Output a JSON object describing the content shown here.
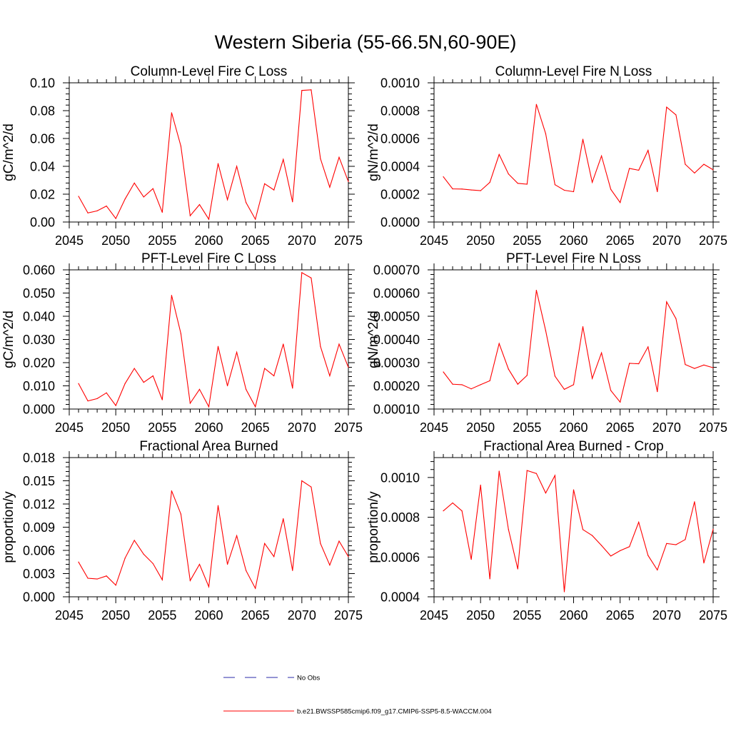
{
  "figure_title": "Western Siberia (55-66.5N,60-90E)",
  "legend": {
    "items": [
      {
        "label": "No Obs",
        "style": "dashed",
        "color": "#2a2aa8"
      },
      {
        "label": "b.e21.BWSSP585cmip6.f09_g17.CMIP6-SSP5-8.5-WACCM.004",
        "style": "solid",
        "color": "#ff0000"
      }
    ]
  },
  "colors": {
    "series": "#ff0000",
    "axis": "#000000"
  },
  "chart_data": [
    {
      "type": "line",
      "title": "Column-Level Fire C Loss",
      "xlabel": "",
      "ylabel": "gC/m^2/d",
      "xlim": [
        2045,
        2075
      ],
      "ylim": [
        0,
        0.1
      ],
      "xticks": [
        "2045",
        "2050",
        "2055",
        "2060",
        "2065",
        "2070",
        "2075"
      ],
      "yticks": [
        "0.00",
        "0.02",
        "0.04",
        "0.06",
        "0.08",
        "0.10"
      ],
      "ytick_values": [
        0,
        0.02,
        0.04,
        0.06,
        0.08,
        0.1
      ],
      "x": [
        2046,
        2047,
        2048,
        2049,
        2050,
        2051,
        2052,
        2053,
        2054,
        2055,
        2056,
        2057,
        2058,
        2059,
        2060,
        2061,
        2062,
        2063,
        2064,
        2065,
        2066,
        2067,
        2068,
        2069,
        2070,
        2071,
        2072,
        2073,
        2074,
        2075
      ],
      "series": [
        {
          "name": "b.e21.BWSSP585cmip6.f09_g17.CMIP6-SSP5-8.5-WACCM.004",
          "values": [
            0.0185,
            0.0065,
            0.008,
            0.0115,
            0.0025,
            0.0165,
            0.028,
            0.018,
            0.024,
            0.007,
            0.0785,
            0.0545,
            0.0045,
            0.0125,
            0.002,
            0.042,
            0.016,
            0.04,
            0.014,
            0.002,
            0.0275,
            0.023,
            0.045,
            0.0145,
            0.0945,
            0.095,
            0.0455,
            0.025,
            0.0465,
            0.029
          ]
        }
      ]
    },
    {
      "type": "line",
      "title": "Column-Level Fire N Loss",
      "xlabel": "",
      "ylabel": "gN/m^2/d",
      "xlim": [
        2045,
        2075
      ],
      "ylim": [
        0,
        0.001
      ],
      "xticks": [
        "2045",
        "2050",
        "2055",
        "2060",
        "2065",
        "2070",
        "2075"
      ],
      "yticks": [
        "0.0000",
        "0.0002",
        "0.0004",
        "0.0006",
        "0.0008",
        "0.0010"
      ],
      "ytick_values": [
        0,
        0.0002,
        0.0004,
        0.0006,
        0.0008,
        0.001
      ],
      "x": [
        2046,
        2047,
        2048,
        2049,
        2050,
        2051,
        2052,
        2053,
        2054,
        2055,
        2056,
        2057,
        2058,
        2059,
        2060,
        2061,
        2062,
        2063,
        2064,
        2065,
        2066,
        2067,
        2068,
        2069,
        2070,
        2071,
        2072,
        2073,
        2074,
        2075
      ],
      "series": [
        {
          "name": "b.e21.BWSSP585cmip6.f09_g17.CMIP6-SSP5-8.5-WACCM.004",
          "values": [
            0.000325,
            0.000238,
            0.000237,
            0.00023,
            0.000225,
            0.000285,
            0.000485,
            0.000345,
            0.000278,
            0.000272,
            0.000845,
            0.000635,
            0.000268,
            0.000228,
            0.000218,
            0.000595,
            0.000285,
            0.000475,
            0.000235,
            0.00014,
            0.000385,
            0.000372,
            0.000515,
            0.000218,
            0.000825,
            0.00077,
            0.000415,
            0.000352,
            0.000415,
            0.000375
          ]
        }
      ]
    },
    {
      "type": "line",
      "title": "PFT-Level Fire C Loss",
      "xlabel": "",
      "ylabel": "gC/m^2/d",
      "xlim": [
        2045,
        2075
      ],
      "ylim": [
        0,
        0.06
      ],
      "xticks": [
        "2045",
        "2050",
        "2055",
        "2060",
        "2065",
        "2070",
        "2075"
      ],
      "yticks": [
        "0.000",
        "0.010",
        "0.020",
        "0.030",
        "0.040",
        "0.050",
        "0.060"
      ],
      "ytick_values": [
        0,
        0.01,
        0.02,
        0.03,
        0.04,
        0.05,
        0.06
      ],
      "x": [
        2046,
        2047,
        2048,
        2049,
        2050,
        2051,
        2052,
        2053,
        2054,
        2055,
        2056,
        2057,
        2058,
        2059,
        2060,
        2061,
        2062,
        2063,
        2064,
        2065,
        2066,
        2067,
        2068,
        2069,
        2070,
        2071,
        2072,
        2073,
        2074,
        2075
      ],
      "series": [
        {
          "name": "b.e21.BWSSP585cmip6.f09_g17.CMIP6-SSP5-8.5-WACCM.004",
          "values": [
            0.011,
            0.0035,
            0.0045,
            0.007,
            0.0015,
            0.011,
            0.0175,
            0.0115,
            0.0143,
            0.004,
            0.049,
            0.0325,
            0.0025,
            0.0085,
            0.001,
            0.027,
            0.01,
            0.0245,
            0.0085,
            0.001,
            0.0175,
            0.0143,
            0.028,
            0.009,
            0.0588,
            0.0565,
            0.027,
            0.0143,
            0.028,
            0.018
          ]
        }
      ]
    },
    {
      "type": "line",
      "title": "PFT-Level Fire N Loss",
      "xlabel": "",
      "ylabel": "gN/m^2/d",
      "xlim": [
        2045,
        2075
      ],
      "ylim": [
        0.0001,
        0.0007
      ],
      "xticks": [
        "2045",
        "2050",
        "2055",
        "2060",
        "2065",
        "2070",
        "2075"
      ],
      "yticks": [
        "0.00010",
        "0.00020",
        "0.00030",
        "0.00040",
        "0.00050",
        "0.00060",
        "0.00070"
      ],
      "ytick_values": [
        0.0001,
        0.0002,
        0.0003,
        0.0004,
        0.0005,
        0.0006,
        0.0007
      ],
      "x": [
        2046,
        2047,
        2048,
        2049,
        2050,
        2051,
        2052,
        2053,
        2054,
        2055,
        2056,
        2057,
        2058,
        2059,
        2060,
        2061,
        2062,
        2063,
        2064,
        2065,
        2066,
        2067,
        2068,
        2069,
        2070,
        2071,
        2072,
        2073,
        2074,
        2075
      ],
      "series": [
        {
          "name": "b.e21.BWSSP585cmip6.f09_g17.CMIP6-SSP5-8.5-WACCM.004",
          "values": [
            0.00026,
            0.000207,
            0.000205,
            0.000187,
            0.000205,
            0.000222,
            0.000382,
            0.000272,
            0.000207,
            0.000245,
            0.000612,
            0.000438,
            0.000242,
            0.000185,
            0.000205,
            0.000455,
            0.000232,
            0.000342,
            0.00018,
            0.00013,
            0.000297,
            0.000295,
            0.000368,
            0.000175,
            0.000562,
            0.00049,
            0.000292,
            0.000275,
            0.00029,
            0.000278
          ]
        }
      ]
    },
    {
      "type": "line",
      "title": "Fractional Area Burned",
      "xlabel": "",
      "ylabel": "proportion/y",
      "xlim": [
        2045,
        2075
      ],
      "ylim": [
        0,
        0.018
      ],
      "xticks": [
        "2045",
        "2050",
        "2055",
        "2060",
        "2065",
        "2070",
        "2075"
      ],
      "yticks": [
        "0.000",
        "0.003",
        "0.006",
        "0.009",
        "0.012",
        "0.015",
        "0.018"
      ],
      "ytick_values": [
        0,
        0.003,
        0.006,
        0.009,
        0.012,
        0.015,
        0.018
      ],
      "x": [
        2046,
        2047,
        2048,
        2049,
        2050,
        2051,
        2052,
        2053,
        2054,
        2055,
        2056,
        2057,
        2058,
        2059,
        2060,
        2061,
        2062,
        2063,
        2064,
        2065,
        2066,
        2067,
        2068,
        2069,
        2070,
        2071,
        2072,
        2073,
        2074,
        2075
      ],
      "series": [
        {
          "name": "b.e21.BWSSP585cmip6.f09_g17.CMIP6-SSP5-8.5-WACCM.004",
          "values": [
            0.0045,
            0.0024,
            0.0023,
            0.0027,
            0.0015,
            0.005,
            0.0073,
            0.0055,
            0.0043,
            0.0022,
            0.0137,
            0.0107,
            0.0021,
            0.0042,
            0.0013,
            0.0118,
            0.0042,
            0.0079,
            0.0034,
            0.0011,
            0.0069,
            0.0052,
            0.0101,
            0.0034,
            0.015,
            0.0142,
            0.0069,
            0.0041,
            0.0072,
            0.0052
          ]
        }
      ]
    },
    {
      "type": "line",
      "title": "Fractional Area Burned - Crop",
      "xlabel": "",
      "ylabel": "proportion/y",
      "xlim": [
        2045,
        2075
      ],
      "ylim": [
        0.0004,
        0.0011
      ],
      "xticks": [
        "2045",
        "2050",
        "2055",
        "2060",
        "2065",
        "2070",
        "2075"
      ],
      "yticks": [
        "0.0004",
        "0.0006",
        "0.0008",
        "0.0010"
      ],
      "ytick_values": [
        0.0004,
        0.0006,
        0.0008,
        0.001
      ],
      "x": [
        2046,
        2047,
        2048,
        2049,
        2050,
        2051,
        2052,
        2053,
        2054,
        2055,
        2056,
        2057,
        2058,
        2059,
        2060,
        2061,
        2062,
        2063,
        2064,
        2065,
        2066,
        2067,
        2068,
        2069,
        2070,
        2071,
        2072,
        2073,
        2074,
        2075
      ],
      "series": [
        {
          "name": "b.e21.BWSSP585cmip6.f09_g17.CMIP6-SSP5-8.5-WACCM.004",
          "values": [
            0.000832,
            0.000872,
            0.000832,
            0.000588,
            0.000962,
            0.00049,
            0.001032,
            0.000738,
            0.00054,
            0.001035,
            0.00102,
            0.000922,
            0.00101,
            0.000425,
            0.000938,
            0.000738,
            0.000708,
            0.000658,
            0.000605,
            0.000632,
            0.000652,
            0.000775,
            0.000608,
            0.000535,
            0.000668,
            0.000662,
            0.000688,
            0.000878,
            0.00057,
            0.00074
          ]
        }
      ]
    }
  ]
}
